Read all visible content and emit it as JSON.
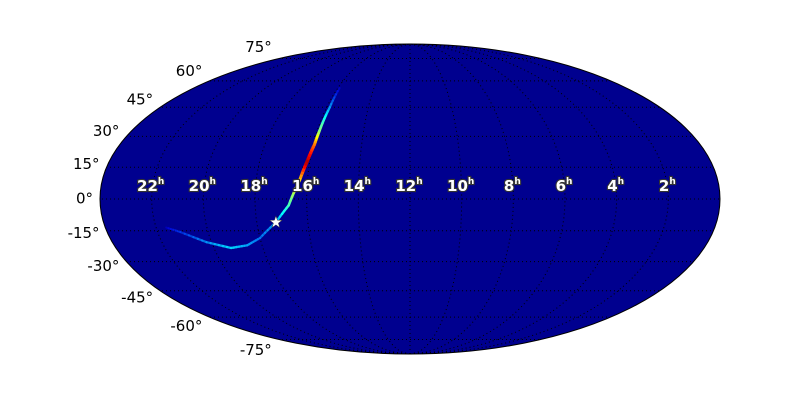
{
  "chart_data": {
    "type": "heatmap",
    "projection": "mollweide",
    "background_color": "#00008f",
    "colormap": "jet",
    "grid": true,
    "ra_tick_labels": [
      "22",
      "20",
      "18",
      "16",
      "14",
      "12",
      "10",
      "8",
      "6",
      "4",
      "2"
    ],
    "ra_tick_values_hours": [
      22,
      20,
      18,
      16,
      14,
      12,
      10,
      8,
      6,
      4,
      2
    ],
    "ra_unit": "h",
    "dec_tick_labels": [
      "75°",
      "60°",
      "45°",
      "30°",
      "15°",
      "0°",
      "-15°",
      "-30°",
      "-45°",
      "-60°",
      "-75°"
    ],
    "dec_tick_values_deg": [
      75,
      60,
      45,
      30,
      15,
      0,
      -15,
      -30,
      -45,
      -60,
      -75
    ],
    "probability_arc": [
      {
        "ra_h": 21.6,
        "dec": -13.5,
        "p": 0.0
      },
      {
        "ra_h": 21.1,
        "dec": -15.6,
        "p": 0.08
      },
      {
        "ra_h": 20.2,
        "dec": -20.5,
        "p": 0.18
      },
      {
        "ra_h": 19.3,
        "dec": -23.3,
        "p": 0.25
      },
      {
        "ra_h": 18.6,
        "dec": -22.0,
        "p": 0.2
      },
      {
        "ra_h": 18.0,
        "dec": -18.5,
        "p": 0.15
      },
      {
        "ra_h": 17.25,
        "dec": -11.0,
        "p": 0.2
      },
      {
        "ra_h": 16.7,
        "dec": -3.0,
        "p": 0.35
      },
      {
        "ra_h": 16.3,
        "dec": 9.0,
        "p": 0.6
      },
      {
        "ra_h": 16.1,
        "dec": 18.0,
        "p": 0.95
      },
      {
        "ra_h": 15.95,
        "dec": 26.0,
        "p": 0.75
      },
      {
        "ra_h": 15.9,
        "dec": 33.0,
        "p": 0.45
      },
      {
        "ra_h": 15.85,
        "dec": 45.0,
        "p": 0.2
      },
      {
        "ra_h": 15.9,
        "dec": 55.7,
        "p": 0.0
      }
    ],
    "marker": {
      "symbol": "star",
      "color": "#ffffff",
      "ra_h": 17.25,
      "dec": -11.0
    }
  }
}
